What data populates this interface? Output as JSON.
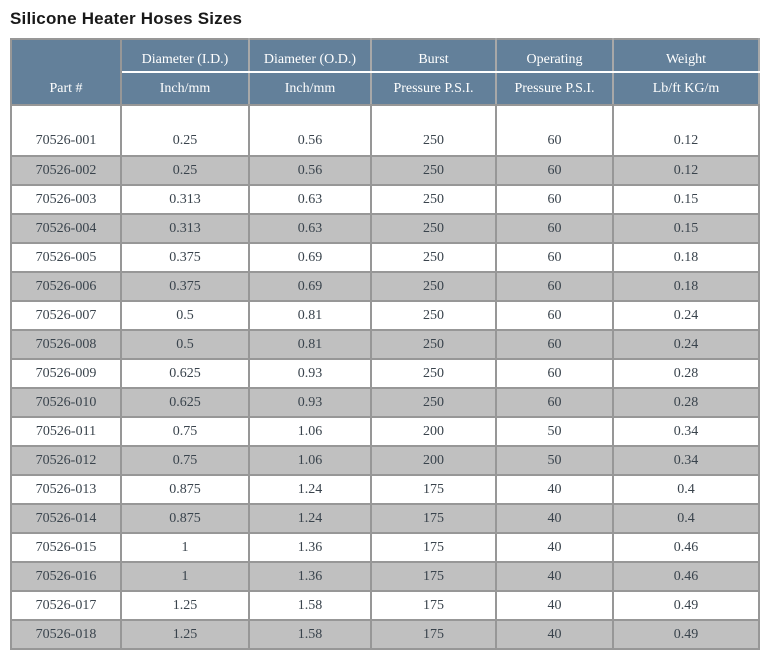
{
  "page": {
    "title": "Silicone Heater Hoses Sizes"
  },
  "colors": {
    "header_bg": "#63809A",
    "header_text": "#FFFFFF",
    "alt_row_bg": "#C0C0C0",
    "row_bg": "#FFFFFF",
    "border": "#979797",
    "body_text": "#39434C",
    "title_text": "#191919"
  },
  "table": {
    "header": {
      "part_label": "Part #",
      "groups": [
        "Diameter (I.D.)",
        "Diameter (O.D.)",
        "Burst",
        "Operating",
        "Weight"
      ],
      "units": [
        "Inch/mm",
        "Inch/mm",
        "Pressure P.S.I.",
        "Pressure P.S.I.",
        "Lb/ft KG/m"
      ]
    },
    "column_keys": [
      "part",
      "diameter_id",
      "diameter_od",
      "burst_psi",
      "operating_psi",
      "weight"
    ],
    "rows": [
      {
        "part": "70526-001",
        "diameter_id": "0.25",
        "diameter_od": "0.56",
        "burst_psi": "250",
        "operating_psi": "60",
        "weight": "0.12"
      },
      {
        "part": "70526-002",
        "diameter_id": "0.25",
        "diameter_od": "0.56",
        "burst_psi": "250",
        "operating_psi": "60",
        "weight": "0.12"
      },
      {
        "part": "70526-003",
        "diameter_id": "0.313",
        "diameter_od": "0.63",
        "burst_psi": "250",
        "operating_psi": "60",
        "weight": "0.15"
      },
      {
        "part": "70526-004",
        "diameter_id": "0.313",
        "diameter_od": "0.63",
        "burst_psi": "250",
        "operating_psi": "60",
        "weight": "0.15"
      },
      {
        "part": "70526-005",
        "diameter_id": "0.375",
        "diameter_od": "0.69",
        "burst_psi": "250",
        "operating_psi": "60",
        "weight": "0.18"
      },
      {
        "part": "70526-006",
        "diameter_id": "0.375",
        "diameter_od": "0.69",
        "burst_psi": "250",
        "operating_psi": "60",
        "weight": "0.18"
      },
      {
        "part": "70526-007",
        "diameter_id": "0.5",
        "diameter_od": "0.81",
        "burst_psi": "250",
        "operating_psi": "60",
        "weight": "0.24"
      },
      {
        "part": "70526-008",
        "diameter_id": "0.5",
        "diameter_od": "0.81",
        "burst_psi": "250",
        "operating_psi": "60",
        "weight": "0.24"
      },
      {
        "part": "70526-009",
        "diameter_id": "0.625",
        "diameter_od": "0.93",
        "burst_psi": "250",
        "operating_psi": "60",
        "weight": "0.28"
      },
      {
        "part": "70526-010",
        "diameter_id": "0.625",
        "diameter_od": "0.93",
        "burst_psi": "250",
        "operating_psi": "60",
        "weight": "0.28"
      },
      {
        "part": "70526-011",
        "diameter_id": "0.75",
        "diameter_od": "1.06",
        "burst_psi": "200",
        "operating_psi": "50",
        "weight": "0.34"
      },
      {
        "part": "70526-012",
        "diameter_id": "0.75",
        "diameter_od": "1.06",
        "burst_psi": "200",
        "operating_psi": "50",
        "weight": "0.34"
      },
      {
        "part": "70526-013",
        "diameter_id": "0.875",
        "diameter_od": "1.24",
        "burst_psi": "175",
        "operating_psi": "40",
        "weight": "0.4"
      },
      {
        "part": "70526-014",
        "diameter_id": "0.875",
        "diameter_od": "1.24",
        "burst_psi": "175",
        "operating_psi": "40",
        "weight": "0.4"
      },
      {
        "part": "70526-015",
        "diameter_id": "1",
        "diameter_od": "1.36",
        "burst_psi": "175",
        "operating_psi": "40",
        "weight": "0.46"
      },
      {
        "part": "70526-016",
        "diameter_id": "1",
        "diameter_od": "1.36",
        "burst_psi": "175",
        "operating_psi": "40",
        "weight": "0.46"
      },
      {
        "part": "70526-017",
        "diameter_id": "1.25",
        "diameter_od": "1.58",
        "burst_psi": "175",
        "operating_psi": "40",
        "weight": "0.49"
      },
      {
        "part": "70526-018",
        "diameter_id": "1.25",
        "diameter_od": "1.58",
        "burst_psi": "175",
        "operating_psi": "40",
        "weight": "0.49"
      }
    ]
  }
}
